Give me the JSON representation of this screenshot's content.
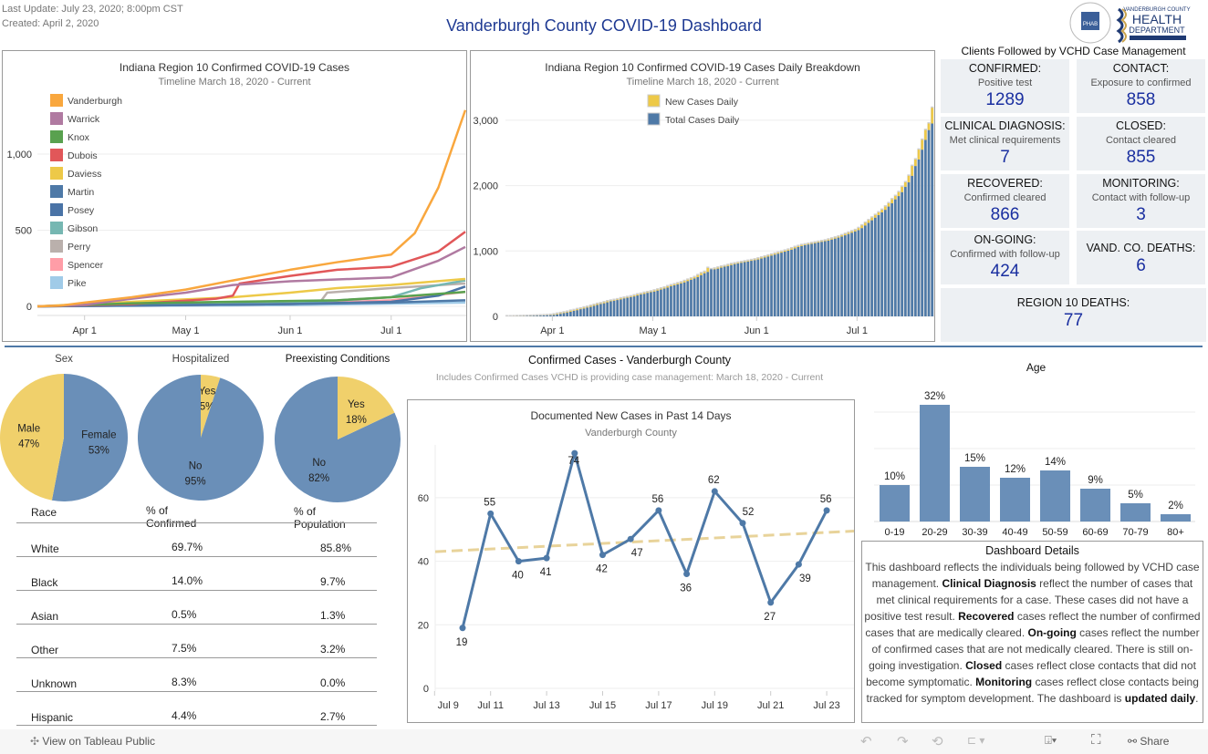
{
  "header": {
    "last_update": "Last Update: July 23, 2020; 8:00pm CST",
    "created": "Created: April 2, 2020",
    "title": "Vanderburgh County COVID-19 Dashboard",
    "logo_text": "VANDERBURGH COUNTY HEALTH DEPARTMENT",
    "seal_text": "PHAB"
  },
  "chart_data": [
    {
      "type": "line",
      "title": "Indiana Region 10 Confirmed COVID-19 Cases",
      "subtitle": "Timeline March 18, 2020 - Current",
      "yticks": [
        0,
        500,
        1000
      ],
      "ytick_labels": [
        "0",
        "500",
        "1,000"
      ],
      "xticks": [
        "2020-04-01",
        "2020-05-01",
        "2020-06-01",
        "2020-07-01"
      ],
      "xtick_labels": [
        "Apr 1",
        "May 1",
        "Jun 1",
        "Jul 1"
      ],
      "xlim": [
        "2020-03-18",
        "2020-07-23"
      ],
      "ylim": [
        0,
        1350
      ],
      "legend": "top-left",
      "grid": true,
      "series": [
        {
          "name": "Vanderburgh",
          "color": "#f9a73e",
          "points": [
            [
              "2020-03-18",
              0
            ],
            [
              "2020-03-25",
              5
            ],
            [
              "2020-04-01",
              25
            ],
            [
              "2020-04-15",
              60
            ],
            [
              "2020-05-01",
              110
            ],
            [
              "2020-05-15",
              170
            ],
            [
              "2020-06-01",
              240
            ],
            [
              "2020-06-15",
              290
            ],
            [
              "2020-07-01",
              340
            ],
            [
              "2020-07-08",
              480
            ],
            [
              "2020-07-15",
              780
            ],
            [
              "2020-07-23",
              1289
            ]
          ]
        },
        {
          "name": "Warrick",
          "color": "#b07aa1",
          "points": [
            [
              "2020-03-18",
              0
            ],
            [
              "2020-04-01",
              10
            ],
            [
              "2020-04-15",
              50
            ],
            [
              "2020-05-01",
              90
            ],
            [
              "2020-05-15",
              140
            ],
            [
              "2020-06-01",
              165
            ],
            [
              "2020-07-01",
              190
            ],
            [
              "2020-07-15",
              300
            ],
            [
              "2020-07-23",
              390
            ]
          ]
        },
        {
          "name": "Knox",
          "color": "#59a14f",
          "points": [
            [
              "2020-03-18",
              0
            ],
            [
              "2020-04-15",
              20
            ],
            [
              "2020-06-15",
              40
            ],
            [
              "2020-07-01",
              60
            ],
            [
              "2020-07-23",
              95
            ]
          ]
        },
        {
          "name": "Dubois",
          "color": "#e15759",
          "points": [
            [
              "2020-03-18",
              0
            ],
            [
              "2020-04-15",
              15
            ],
            [
              "2020-05-10",
              50
            ],
            [
              "2020-05-15",
              70
            ],
            [
              "2020-05-17",
              150
            ],
            [
              "2020-06-01",
              200
            ],
            [
              "2020-06-15",
              240
            ],
            [
              "2020-07-01",
              260
            ],
            [
              "2020-07-15",
              360
            ],
            [
              "2020-07-23",
              490
            ]
          ]
        },
        {
          "name": "Daviess",
          "color": "#edc948",
          "points": [
            [
              "2020-03-18",
              0
            ],
            [
              "2020-04-15",
              30
            ],
            [
              "2020-05-15",
              60
            ],
            [
              "2020-06-01",
              90
            ],
            [
              "2020-06-15",
              120
            ],
            [
              "2020-07-01",
              140
            ],
            [
              "2020-07-23",
              180
            ]
          ]
        },
        {
          "name": "Martin",
          "color": "#4e79a7",
          "points": [
            [
              "2020-03-18",
              0
            ],
            [
              "2020-06-01",
              15
            ],
            [
              "2020-07-01",
              25
            ],
            [
              "2020-07-23",
              40
            ]
          ]
        },
        {
          "name": "Posey",
          "color": "#4a73a6",
          "points": [
            [
              "2020-03-18",
              0
            ],
            [
              "2020-06-01",
              15
            ],
            [
              "2020-07-01",
              30
            ],
            [
              "2020-07-15",
              70
            ],
            [
              "2020-07-23",
              130
            ]
          ]
        },
        {
          "name": "Gibson",
          "color": "#76b7b2",
          "points": [
            [
              "2020-03-18",
              0
            ],
            [
              "2020-06-01",
              20
            ],
            [
              "2020-07-01",
              60
            ],
            [
              "2020-07-10",
              120
            ],
            [
              "2020-07-23",
              170
            ]
          ]
        },
        {
          "name": "Perry",
          "color": "#bab0ac",
          "points": [
            [
              "2020-03-18",
              0
            ],
            [
              "2020-06-01",
              25
            ],
            [
              "2020-06-10",
              30
            ],
            [
              "2020-06-12",
              90
            ],
            [
              "2020-07-01",
              120
            ],
            [
              "2020-07-23",
              150
            ]
          ]
        },
        {
          "name": "Spencer",
          "color": "#ff9da7",
          "points": [
            [
              "2020-03-18",
              0
            ],
            [
              "2020-06-01",
              15
            ],
            [
              "2020-07-01",
              40
            ],
            [
              "2020-07-23",
              95
            ]
          ]
        },
        {
          "name": "Pike",
          "color": "#a0cbe8",
          "points": [
            [
              "2020-03-18",
              0
            ],
            [
              "2020-06-01",
              8
            ],
            [
              "2020-07-23",
              25
            ]
          ]
        }
      ]
    },
    {
      "type": "bar",
      "title": "Indiana Region 10 Confirmed COVID-19 Cases Daily Breakdown",
      "subtitle": "Timeline March 18, 2020 - Current",
      "legend": "top-center",
      "grid": true,
      "start_date": "2020-03-18",
      "yticks": [
        0,
        1000,
        2000,
        3000
      ],
      "ytick_labels": [
        "0",
        "1,000",
        "2,000",
        "3,000"
      ],
      "xtick_labels": [
        "Apr 1",
        "May 1",
        "Jun 1",
        "Jul 1"
      ],
      "xticks": [
        "2020-04-01",
        "2020-05-01",
        "2020-06-01",
        "2020-07-01"
      ],
      "ylim": [
        0,
        3300
      ],
      "series": [
        {
          "name": "New Cases Daily",
          "color": "#edc948"
        },
        {
          "name": "Total Cases Daily",
          "color": "#4e79a7"
        }
      ],
      "total_cases": [
        0,
        0,
        1,
        2,
        3,
        5,
        6,
        8,
        10,
        12,
        14,
        16,
        18,
        22,
        30,
        40,
        50,
        60,
        70,
        85,
        95,
        110,
        120,
        135,
        145,
        160,
        175,
        190,
        200,
        215,
        230,
        240,
        250,
        260,
        275,
        285,
        295,
        305,
        320,
        335,
        345,
        360,
        370,
        380,
        395,
        410,
        425,
        440,
        460,
        475,
        490,
        505,
        520,
        540,
        560,
        580,
        600,
        630,
        660,
        680,
        740,
        720,
        730,
        745,
        760,
        770,
        785,
        800,
        810,
        820,
        830,
        840,
        850,
        860,
        870,
        885,
        900,
        915,
        930,
        945,
        960,
        975,
        990,
        1005,
        1020,
        1040,
        1060,
        1075,
        1090,
        1100,
        1110,
        1120,
        1130,
        1140,
        1150,
        1160,
        1175,
        1190,
        1205,
        1220,
        1240,
        1260,
        1280,
        1300,
        1320,
        1350,
        1390,
        1430,
        1470,
        1510,
        1550,
        1590,
        1630,
        1680,
        1730,
        1790,
        1840,
        1900,
        1980,
        2050,
        2150,
        2300,
        2400,
        2550,
        2700,
        2850,
        2950,
        3190
      ]
    },
    {
      "type": "pie",
      "title": "Sex",
      "slices": [
        {
          "label": "Female",
          "value": 53,
          "pct": "53%",
          "color": "#6a8fb8"
        },
        {
          "label": "Male",
          "value": 47,
          "pct": "47%",
          "color": "#f0d06b"
        }
      ]
    },
    {
      "type": "pie",
      "title": "Hospitalized",
      "slices": [
        {
          "label": "Yes",
          "value": 5,
          "pct": "5%",
          "color": "#f0d06b"
        },
        {
          "label": "No",
          "value": 95,
          "pct": "95%",
          "color": "#6a8fb8"
        }
      ]
    },
    {
      "type": "pie",
      "title": "Preexisting Conditions",
      "slices": [
        {
          "label": "No",
          "value": 82,
          "pct": "82%",
          "color": "#6a8fb8"
        },
        {
          "label": "Yes",
          "value": 18,
          "pct": "18%",
          "color": "#f0d06b"
        }
      ]
    },
    {
      "type": "line",
      "title": "Documented New Cases in Past 14 Days",
      "subtitle": "Vanderburgh County",
      "ylim": [
        0,
        75
      ],
      "yticks": [
        0,
        20,
        40,
        60
      ],
      "grid": true,
      "trend_line": true,
      "x": [
        "Jul 10",
        "Jul 11",
        "Jul 12",
        "Jul 13",
        "Jul 14",
        "Jul 15",
        "Jul 16",
        "Jul 17",
        "Jul 18",
        "Jul 19",
        "Jul 20",
        "Jul 21",
        "Jul 22",
        "Jul 23"
      ],
      "xtick_labels": [
        "Jul 9",
        "Jul 11",
        "Jul 13",
        "Jul 15",
        "Jul 17",
        "Jul 19",
        "Jul 21",
        "Jul 23"
      ],
      "values": [
        19,
        55,
        40,
        41,
        74,
        42,
        47,
        56,
        36,
        62,
        52,
        27,
        39,
        56
      ],
      "trend": [
        43,
        49.5
      ],
      "color": "#4e79a7",
      "trend_color": "#e8d39a"
    },
    {
      "type": "bar",
      "title": "Age",
      "categories": [
        "0-19",
        "20-29",
        "30-39",
        "40-49",
        "50-59",
        "60-69",
        "70-79",
        "80+"
      ],
      "values": [
        10,
        32,
        15,
        12,
        14,
        9,
        5,
        2
      ],
      "labels": [
        "10%",
        "32%",
        "15%",
        "12%",
        "14%",
        "9%",
        "5%",
        "2%"
      ],
      "ylim": [
        0,
        35
      ],
      "color": "#6a8fb8"
    }
  ],
  "section": {
    "title": "Confirmed Cases - Vanderburgh County",
    "subtitle": "Includes Confirmed Cases VCHD is providing case management: March 18, 2020 - Current"
  },
  "stats": {
    "title": "Clients  Followed by VCHD Case Management",
    "items": [
      {
        "h": "CONFIRMED:",
        "s": "Positive test",
        "v": "1289"
      },
      {
        "h": "CONTACT:",
        "s": "Exposure to confirmed",
        "v": "858"
      },
      {
        "h": "CLINICAL DIAGNOSIS:",
        "s": "Met clinical requirements",
        "v": "7"
      },
      {
        "h": "CLOSED:",
        "s": "Contact cleared",
        "v": "855"
      },
      {
        "h": "RECOVERED:",
        "s": "Confirmed cleared",
        "v": "866"
      },
      {
        "h": "MONITORING:",
        "s": "Contact with follow-up",
        "v": "3"
      },
      {
        "h": "ON-GOING:",
        "s": "Confirmed with follow-up",
        "v": "424"
      },
      {
        "h": "VAND. CO. DEATHS:",
        "s": "",
        "v": "6"
      },
      {
        "h": "REGION 10 DEATHS:",
        "s": "",
        "v": "77"
      }
    ]
  },
  "race": {
    "headers": [
      "Race",
      "% of Confirmed",
      "% of Population"
    ],
    "rows": [
      [
        "White",
        "69.7%",
        "85.8%"
      ],
      [
        "Black",
        "14.0%",
        "9.7%"
      ],
      [
        "Asian",
        "0.5%",
        "1.3%"
      ],
      [
        "Other",
        "7.5%",
        "3.2%"
      ],
      [
        "Unknown",
        "8.3%",
        "0.0%"
      ],
      [
        "Hispanic",
        "4.4%",
        "2.7%"
      ]
    ]
  },
  "details": {
    "title": "Dashboard Details",
    "parts": [
      [
        "t",
        "This dashboard reflects the individuals being followed by VCHD case management. "
      ],
      [
        "b",
        "Clinical Diagnosis"
      ],
      [
        "t",
        " reflect the number of cases that met clinical requirements for a case. These cases did not have a positive test result. "
      ],
      [
        "b",
        "Recovered"
      ],
      [
        "t",
        " cases reflect the number of confirmed cases that are medically cleared. "
      ],
      [
        "b",
        "On-going"
      ],
      [
        "t",
        " cases reflect the number of confirmed cases that are not medically cleared. There is still on-going investigation. "
      ],
      [
        "b",
        "Closed"
      ],
      [
        "t",
        " cases reflect close contacts that did not become symptomatic. "
      ],
      [
        "b",
        "Monitoring"
      ],
      [
        "t",
        " cases reflect close contacts being tracked for symptom development. The dashboard is "
      ],
      [
        "b",
        "updated daily"
      ],
      [
        "t",
        "."
      ]
    ]
  },
  "footer": {
    "view_label": "View on Tableau Public",
    "share_label": "Share"
  }
}
